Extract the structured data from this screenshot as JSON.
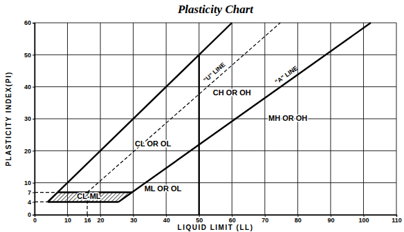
{
  "chart_data": {
    "type": "line",
    "title": "Plasticity Chart",
    "xlabel": "LIQUID LIMIT (LL)",
    "ylabel": "PLASTICITY INDEX(PI)",
    "xlim": [
      0,
      110
    ],
    "ylim": [
      0,
      60
    ],
    "xticks": [
      0,
      10,
      16,
      20,
      30,
      40,
      50,
      60,
      70,
      80,
      90,
      100,
      110
    ],
    "yticks": [
      0,
      4,
      7,
      10,
      20,
      30,
      40,
      50,
      60
    ],
    "grid": true,
    "series": [
      {
        "x": [
          4,
          60
        ],
        "values": [
          4,
          60
        ],
        "color": "#000000",
        "line_style": "solid"
      },
      {
        "name": "\"A\" LINE",
        "x": [
          25.5,
          102.2
        ],
        "values": [
          4,
          60
        ],
        "color": "#000000",
        "line_style": "solid"
      },
      {
        "x": [
          50,
          50
        ],
        "values": [
          0,
          50
        ],
        "color": "#000000",
        "line_style": "solid"
      },
      {
        "x": [
          7,
          29.6
        ],
        "values": [
          7,
          7
        ],
        "color": "#000000",
        "line_style": "solid"
      },
      {
        "x": [
          4,
          25.5
        ],
        "values": [
          4,
          4
        ],
        "color": "#000000",
        "line_style": "solid"
      },
      {
        "x": [
          0,
          7
        ],
        "values": [
          7,
          7
        ],
        "color": "#000000",
        "line_style": "dashed"
      },
      {
        "x": [
          0,
          4
        ],
        "values": [
          4,
          4
        ],
        "color": "#000000",
        "line_style": "dashed"
      },
      {
        "x": [
          16,
          16
        ],
        "values": [
          0,
          7
        ],
        "color": "#000000",
        "line_style": "dashed"
      },
      {
        "name": "\"U\" LINE",
        "x": [
          16,
          74.7
        ],
        "values": [
          7,
          60
        ],
        "color": "#000000",
        "line_style": "dashed"
      },
      {
        "type": "area",
        "x": [
          4,
          25.5,
          29.6,
          7
        ],
        "values": [
          4,
          4,
          7,
          7
        ],
        "color": "#000000",
        "line_style": "hatched"
      }
    ],
    "annotations": [
      {
        "text": "CL OR OL",
        "x": 36,
        "y": 22
      },
      {
        "text": "CH OR OH",
        "x": 60,
        "y": 38
      },
      {
        "text": "MH OR OH",
        "x": 77,
        "y": 30
      },
      {
        "text": "ML OR OL",
        "x": 39,
        "y": 8
      },
      {
        "text": "CL-ML",
        "x": 16.5,
        "y": 5.5
      }
    ]
  }
}
